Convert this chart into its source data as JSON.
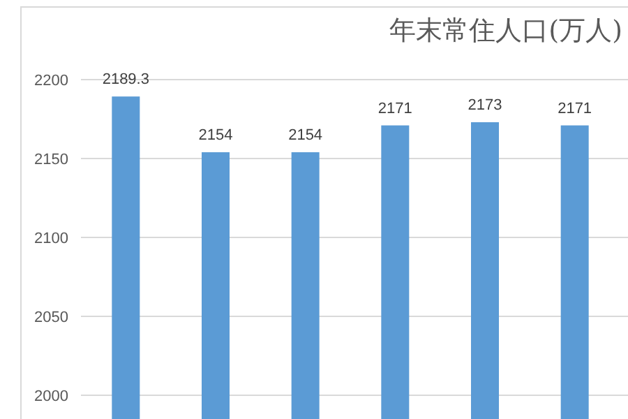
{
  "chart_data": {
    "type": "bar",
    "title": "年末常住人口(万人)",
    "categories": [
      null,
      null,
      null,
      null,
      null,
      null
    ],
    "values": [
      2189.3,
      2154,
      2154,
      2171,
      2173,
      2171
    ],
    "color": "#5b9bd5",
    "ylim": [
      1985,
      2200
    ],
    "yticks": [
      2000,
      2050,
      2100,
      2150,
      2200
    ],
    "grid": "y",
    "data_labels": true
  }
}
